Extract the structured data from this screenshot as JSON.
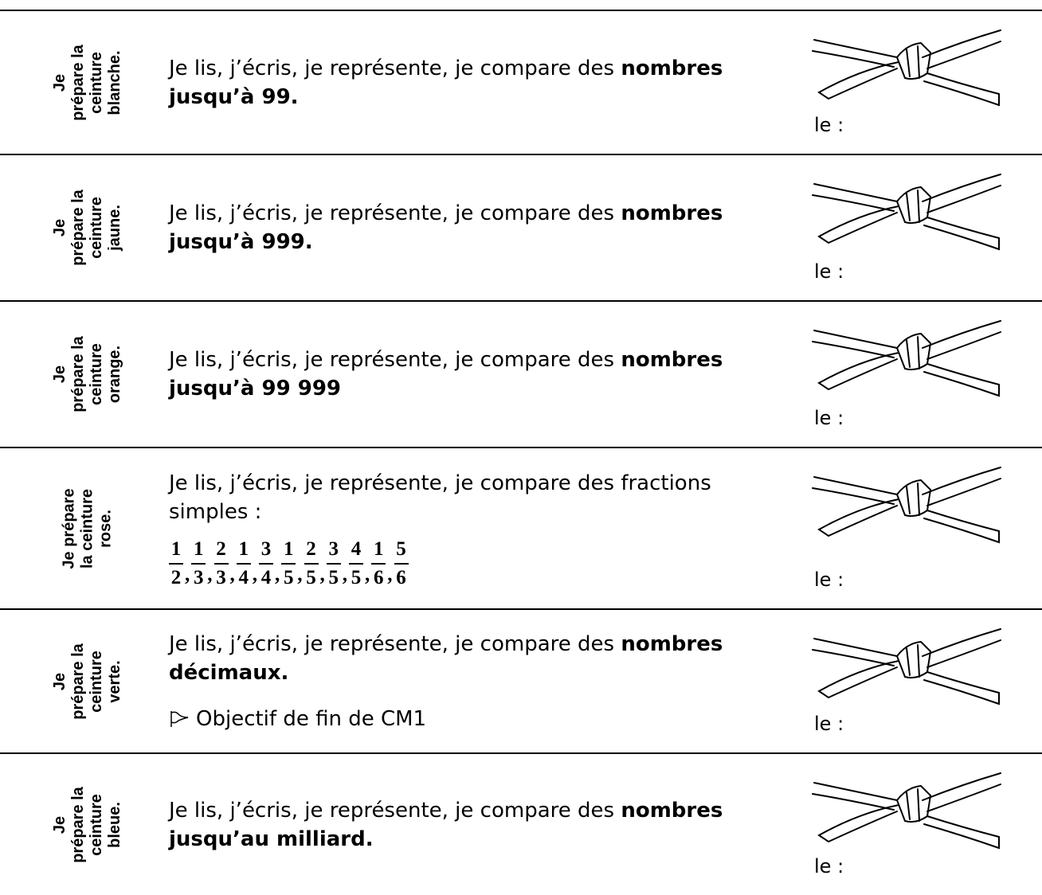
{
  "rows": [
    {
      "label": [
        "Je",
        "prépare la",
        "ceinture",
        "blanche."
      ],
      "text": "Je lis, j’écris, je représente, je compare des ",
      "bold": "nombres jusqu’à 99.",
      "date_label": "le :"
    },
    {
      "label": [
        "Je",
        "prépare la",
        "ceinture",
        "jaune."
      ],
      "text": "Je lis, j’écris, je représente, je compare des ",
      "bold": "nombres jusqu’à 999.",
      "date_label": "le :"
    },
    {
      "label": [
        "Je",
        "prépare la",
        "ceinture",
        "orange."
      ],
      "text": "Je lis, j’écris, je représente, je compare des ",
      "bold": "nombres jusqu’à 99 999",
      "date_label": "le :"
    },
    {
      "label": [
        "Je prépare",
        "la ceinture",
        "rose."
      ],
      "text": "Je lis, j’écris, je représente, je compare des fractions simples :",
      "fractions": [
        [
          "1",
          "2"
        ],
        [
          "1",
          "3"
        ],
        [
          "2",
          "3"
        ],
        [
          "1",
          "4"
        ],
        [
          "3",
          "4"
        ],
        [
          "1",
          "5"
        ],
        [
          "2",
          "5"
        ],
        [
          "3",
          "5"
        ],
        [
          "4",
          "5"
        ],
        [
          "1",
          "6"
        ],
        [
          "5",
          "6"
        ]
      ],
      "date_label": "le :"
    },
    {
      "label": [
        "Je",
        "prépare la",
        "ceinture",
        "verte."
      ],
      "text": "Je lis, j’écris, je représente, je compare des ",
      "bold": "nombres décimaux.",
      "note": "Objectif de fin de CM1",
      "date_label": "le :"
    },
    {
      "label": [
        "Je",
        "prépare la",
        "ceinture",
        "bleue."
      ],
      "text": "Je lis, j’écris, je représente, je compare des ",
      "bold": "nombres jusqu’au milliard.",
      "date_label": "le :"
    }
  ]
}
